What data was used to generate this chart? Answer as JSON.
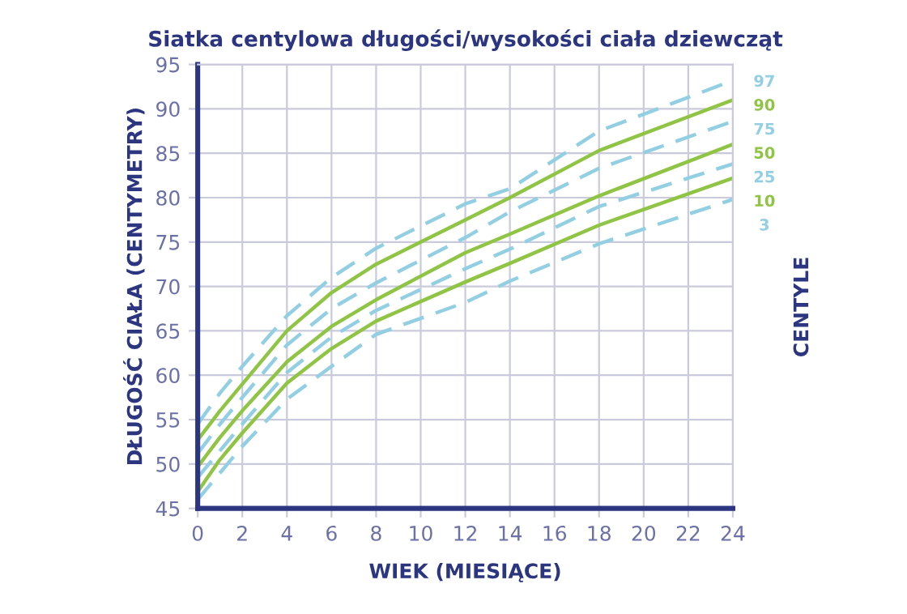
{
  "chart_data": {
    "type": "line",
    "title": "Siatka centylowa długości/wysokości ciała dziewcząt",
    "xlabel": "WIEK (MIESIĄCE)",
    "ylabel": "DŁUGOŚĆ CIAŁA (CENTYMETRY)",
    "y2label": "CENTYLE",
    "x": [
      0,
      1,
      2,
      4,
      6,
      8,
      12,
      14,
      18,
      24
    ],
    "series": [
      {
        "name": "97",
        "color": "#93cfe3",
        "line_style": "dashed",
        "values": [
          54.5,
          58,
          61,
          66.7,
          71,
          74.3,
          79.3,
          81,
          87.5,
          93.2
        ]
      },
      {
        "name": "90",
        "color": "#8fc444",
        "line_style": "solid",
        "values": [
          52.7,
          56,
          59,
          65,
          69.3,
          72.5,
          77.5,
          80,
          85.3,
          91.0
        ]
      },
      {
        "name": "75",
        "color": "#93cfe3",
        "line_style": "dashed",
        "values": [
          51.2,
          54.5,
          57.5,
          63.4,
          67.5,
          70.4,
          75.5,
          78.4,
          83.3,
          88.6
        ]
      },
      {
        "name": "50",
        "color": "#8fc444",
        "line_style": "solid",
        "values": [
          49.7,
          53,
          56,
          61.5,
          65.5,
          68.5,
          73.8,
          75.9,
          80.2,
          86.0
        ]
      },
      {
        "name": "25",
        "color": "#93cfe3",
        "line_style": "dashed",
        "values": [
          48.5,
          51.5,
          54.5,
          60.3,
          64.3,
          67.3,
          72.0,
          74.2,
          79,
          83.8
        ]
      },
      {
        "name": "10",
        "color": "#8fc444",
        "line_style": "solid",
        "values": [
          46.9,
          50.5,
          53.5,
          59.1,
          63,
          66.1,
          70.5,
          72.6,
          76.9,
          82.2
        ]
      },
      {
        "name": "3",
        "color": "#93cfe3",
        "line_style": "dashed",
        "values": [
          46,
          49,
          52,
          57.3,
          61,
          64.6,
          68.2,
          70.6,
          74.8,
          79.8
        ]
      }
    ],
    "xlim": [
      0,
      24
    ],
    "xticks": [
      0,
      2,
      4,
      6,
      8,
      10,
      12,
      14,
      16,
      18,
      20,
      22,
      24
    ],
    "ylim": [
      45,
      95
    ],
    "yticks": [
      45,
      50,
      55,
      60,
      65,
      70,
      75,
      80,
      85,
      90,
      95
    ],
    "grid": true,
    "legend": false,
    "marker": "none"
  }
}
